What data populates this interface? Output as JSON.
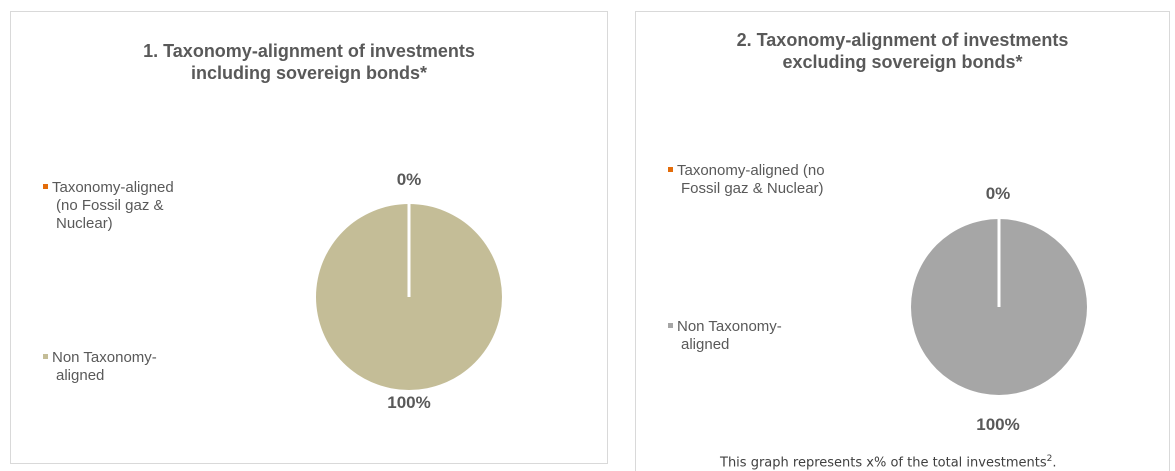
{
  "chart_data": [
    {
      "type": "pie",
      "title": "1. Taxonomy-alignment of investments including sovereign bonds*",
      "title_lines": [
        "1. Taxonomy-alignment of investments",
        "including sovereign bonds*"
      ],
      "legend_position": "left",
      "categories": [
        "Taxonomy-aligned (no Fossil gaz & Nuclear)",
        "Non Taxonomy-aligned"
      ],
      "legend_lines": [
        [
          "Taxonomy-aligned",
          "(no Fossil gaz &",
          "Nuclear)"
        ],
        [
          "Non Taxonomy-",
          "aligned"
        ]
      ],
      "values": [
        0,
        100
      ],
      "data_labels": [
        "0%",
        "100%"
      ],
      "colors": [
        "#e36c0a",
        "#c4bd97"
      ]
    },
    {
      "type": "pie",
      "title": "2. Taxonomy-alignment of investments excluding sovereign bonds*",
      "title_lines": [
        "2. Taxonomy-alignment of investments",
        "excluding sovereign bonds*"
      ],
      "legend_position": "left",
      "categories": [
        "Taxonomy-aligned (no Fossil gaz & Nuclear)",
        "Non Taxonomy-aligned"
      ],
      "legend_lines": [
        [
          "Taxonomy-aligned (no",
          "Fossil gaz & Nuclear)"
        ],
        [
          "Non Taxonomy-",
          "aligned"
        ]
      ],
      "values": [
        0,
        100
      ],
      "data_labels": [
        "0%",
        "100%"
      ],
      "colors": [
        "#e36c0a",
        "#a6a6a6"
      ]
    }
  ],
  "footnote": {
    "text": "This graph represents x% of the total investments",
    "superscript": "2",
    "suffix": "."
  }
}
